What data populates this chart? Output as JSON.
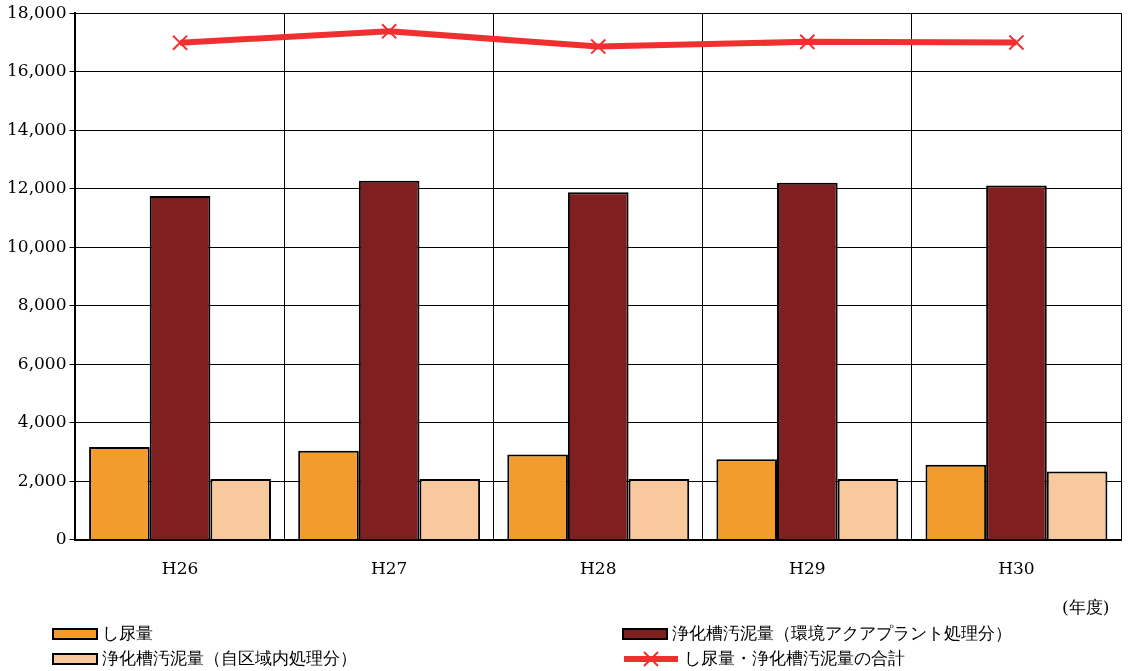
{
  "chart_data": {
    "type": "bar",
    "categories": [
      "H26",
      "H27",
      "H28",
      "H29",
      "H30"
    ],
    "series": [
      {
        "name": "し尿量",
        "color": "#f39c2e",
        "values": [
          3170,
          3040,
          2910,
          2750,
          2560
        ]
      },
      {
        "name": "浄化槽汚泥量（環境アクアプラント処理分）",
        "color": "#7f1f1f",
        "values": [
          11750,
          12270,
          11880,
          12200,
          12110
        ]
      },
      {
        "name": "浄化槽汚泥量（自区域内処理分）",
        "color": "#f8c99c",
        "values": [
          2070,
          2070,
          2070,
          2070,
          2330
        ]
      },
      {
        "name": "し尿量・浄化槽汚泥量の合計",
        "type": "line",
        "color": "#f03030",
        "values": [
          16990,
          17380,
          16860,
          17020,
          17000
        ]
      }
    ],
    "ylim": [
      0,
      18000
    ],
    "yticks": [
      0,
      {
        "value": 2000,
        "label": "2,000"
      },
      {
        "value": 4000,
        "label": "4,000"
      },
      {
        "value": 6000,
        "label": "6,000"
      },
      {
        "value": 8000,
        "label": "8,000"
      },
      {
        "value": 10000,
        "label": "10,000"
      },
      {
        "value": 12000,
        "label": "12,000"
      },
      {
        "value": 14000,
        "label": "14,000"
      },
      {
        "value": 16000,
        "label": "16,000"
      },
      {
        "value": 18000,
        "label": "18,000"
      }
    ],
    "grid": true,
    "legend": "bottom",
    "marker": "cross",
    "line_style": "solid",
    "annotations": [
      "(年度)"
    ]
  }
}
